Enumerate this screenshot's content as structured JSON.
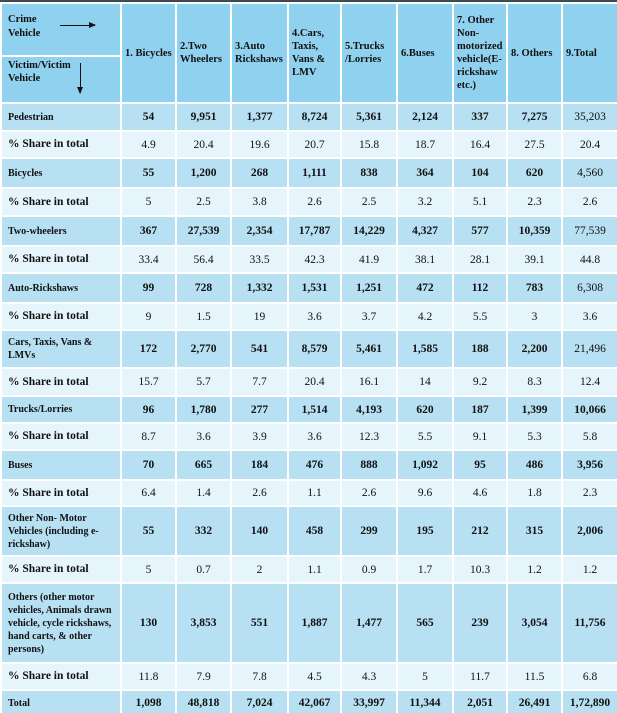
{
  "corner": {
    "top": "Crime Vehicle",
    "bottom": "Victim/Victim Vehicle"
  },
  "columns": [
    "1. Bicycles",
    "2.Two Wheelers",
    "3.Auto Rickshaws",
    "4.Cars, Taxis, Vans & LMV",
    "5.Trucks /Lorries",
    "6.Buses",
    "7. Other Non-motorized vehicle(E-rickshaw etc.)",
    "8. Others",
    "9.Total"
  ],
  "rows": [
    {
      "label": "Pedestrian",
      "values": [
        "54",
        "9,951",
        "1,377",
        "8,724",
        "5,361",
        "2,124",
        "337",
        "7,275",
        "35,203"
      ]
    },
    {
      "label": "% Share in total",
      "values": [
        "4.9",
        "20.4",
        "19.6",
        "20.7",
        "15.8",
        "18.7",
        "16.4",
        "27.5",
        "20.4"
      ]
    },
    {
      "label": "Bicycles",
      "values": [
        "55",
        "1,200",
        "268",
        "1,111",
        "838",
        "364",
        "104",
        "620",
        "4,560"
      ]
    },
    {
      "label": "% Share in total",
      "values": [
        "5",
        "2.5",
        "3.8",
        "2.6",
        "2.5",
        "3.2",
        "5.1",
        "2.3",
        "2.6"
      ]
    },
    {
      "label": "Two-wheelers",
      "values": [
        "367",
        "27,539",
        "2,354",
        "17,787",
        "14,229",
        "4,327",
        "577",
        "10,359",
        "77,539"
      ]
    },
    {
      "label": "% Share in total",
      "values": [
        "33.4",
        "56.4",
        "33.5",
        "42.3",
        "41.9",
        "38.1",
        "28.1",
        "39.1",
        "44.8"
      ]
    },
    {
      "label": "Auto-Rickshaws",
      "values": [
        "99",
        "728",
        "1,332",
        "1,531",
        "1,251",
        "472",
        "112",
        "783",
        "6,308"
      ]
    },
    {
      "label": "% Share in total",
      "values": [
        "9",
        "1.5",
        "19",
        "3.6",
        "3.7",
        "4.2",
        "5.5",
        "3",
        "3.6"
      ]
    },
    {
      "label": "Cars, Taxis, Vans & LMVs",
      "values": [
        "172",
        "2,770",
        "541",
        "8,579",
        "5,461",
        "1,585",
        "188",
        "2,200",
        "21,496"
      ]
    },
    {
      "label": "% Share in total",
      "values": [
        "15.7",
        "5.7",
        "7.7",
        "20.4",
        "16.1",
        "14",
        "9.2",
        "8.3",
        "12.4"
      ]
    },
    {
      "label": "Trucks/Lorries",
      "values": [
        "96",
        "1,780",
        "277",
        "1,514",
        "4,193",
        "620",
        "187",
        "1,399",
        "10,066"
      ]
    },
    {
      "label": "% Share in total",
      "values": [
        "8.7",
        "3.6",
        "3.9",
        "3.6",
        "12.3",
        "5.5",
        "9.1",
        "5.3",
        "5.8"
      ]
    },
    {
      "label": "Buses",
      "values": [
        "70",
        "665",
        "184",
        "476",
        "888",
        "1,092",
        "95",
        "486",
        "3,956"
      ]
    },
    {
      "label": "% Share in total",
      "values": [
        "6.4",
        "1.4",
        "2.6",
        "1.1",
        "2.6",
        "9.6",
        "4.6",
        "1.8",
        "2.3"
      ]
    },
    {
      "label": "Other Non- Motor Vehicles (including e-rickshaw)",
      "values": [
        "55",
        "332",
        "140",
        "458",
        "299",
        "195",
        "212",
        "315",
        "2,006"
      ]
    },
    {
      "label": "% Share in total",
      "values": [
        "5",
        "0.7",
        "2",
        "1.1",
        "0.9",
        "1.7",
        "10.3",
        "1.2",
        "1.2"
      ]
    },
    {
      "label": "Others (other motor vehicles, Animals drawn vehicle, cycle rickshaws, hand carts, & other persons)",
      "values": [
        "130",
        "3,853",
        "551",
        "1,887",
        "1,477",
        "565",
        "239",
        "3,054",
        "11,756"
      ]
    },
    {
      "label": "% Share in total",
      "values": [
        "11.8",
        "7.9",
        "7.8",
        "4.5",
        "4.3",
        "5",
        "11.7",
        "11.5",
        "6.8"
      ]
    },
    {
      "label": "Total",
      "values": [
        "1,098",
        "48,818",
        "7,024",
        "42,067",
        "33,997",
        "11,344",
        "2,051",
        "26,491",
        "1,72,890"
      ]
    }
  ],
  "colors": {
    "header": "#8fd1ee",
    "main_row": "#b7e0f3",
    "share_row": "#e6f5fc"
  }
}
